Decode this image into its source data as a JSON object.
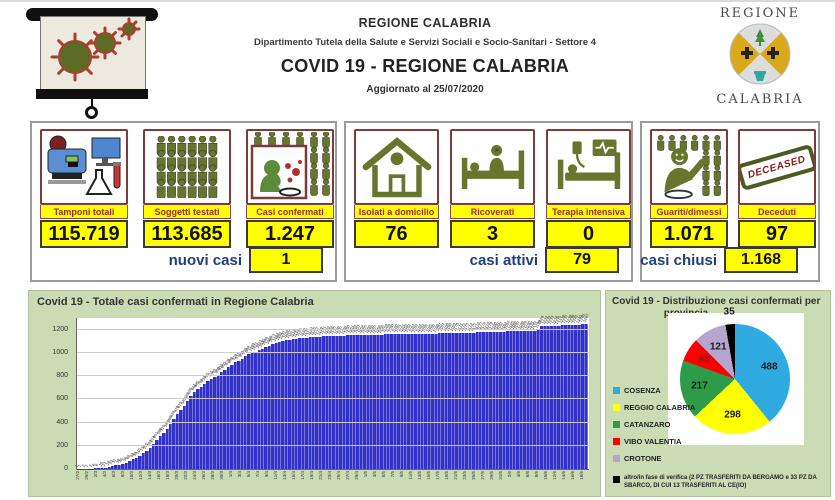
{
  "header": {
    "org": "REGIONE CALABRIA",
    "dept": "Dipartimento Tutela della Salute e Servizi Sociali e Socio-Sanitari - Settore 4",
    "title": "COVID 19 - REGIONE CALABRIA",
    "updated": "Aggiornato al  25/07/2020"
  },
  "logo": {
    "top": "REGIONE",
    "bottom": "CALABRIA"
  },
  "colors": {
    "accent_yellow": "#FFFF00",
    "label_red": "#A02B2B",
    "summary_navy": "#1F3E7A",
    "icon_olive": "#68752C",
    "icon_maroon": "#7E3B3B",
    "panel_green": "#CBDBB3",
    "bar_blue": "#3231C8"
  },
  "stats": {
    "groups": [
      {
        "cards": [
          {
            "label": "Tamponi totali",
            "value": "115.719"
          },
          {
            "label": "Soggetti testati",
            "value": "113.685"
          },
          {
            "label": "Casi confermati",
            "value": "1.247"
          }
        ],
        "summary_label": "nuovi casi",
        "summary_value": "1"
      },
      {
        "cards": [
          {
            "label": "Isolati a domicilio",
            "value": "76"
          },
          {
            "label": "Ricoverati",
            "value": "3"
          },
          {
            "label": "Terapia intensiva",
            "value": "0"
          }
        ],
        "summary_label": "casi attivi",
        "summary_value": "79"
      },
      {
        "cards": [
          {
            "label": "Guariti/dimessi",
            "value": "1.071"
          },
          {
            "label": "Deceduti",
            "value": "97",
            "stamp_text": "DECEASED"
          }
        ],
        "summary_label": "casi chiusi",
        "summary_value": "1.168"
      }
    ]
  },
  "chart_data": [
    {
      "type": "bar",
      "title": "Covid 19 - Totale casi confermati in Regione Calabria",
      "ylim": [
        0,
        1300
      ],
      "yticks": [
        0,
        200,
        400,
        600,
        800,
        1000,
        1200
      ],
      "grid": true,
      "bar_color": "#3231C8",
      "x": [
        "27/2",
        "28/2",
        "29/2",
        "1/3",
        "2/3",
        "3/3",
        "4/3",
        "5/3",
        "6/3",
        "7/3",
        "8/3",
        "9/3",
        "10/3",
        "11/3",
        "12/3",
        "13/3",
        "14/3",
        "15/3",
        "16/3",
        "17/3",
        "18/3",
        "19/3",
        "20/3",
        "21/3",
        "22/3",
        "23/3",
        "24/3",
        "25/3",
        "26/3",
        "27/3",
        "28/3",
        "29/3",
        "30/3",
        "31/3",
        "1/4",
        "2/4",
        "3/4",
        "4/4",
        "5/4",
        "6/4",
        "7/4",
        "8/4",
        "9/4",
        "10/4",
        "11/4",
        "12/4",
        "13/4",
        "14/4",
        "15/4",
        "16/4",
        "17/4",
        "18/4",
        "19/4",
        "20/4",
        "21/4",
        "22/4",
        "23/4",
        "24/4",
        "25/4",
        "26/4",
        "27/4",
        "28/4",
        "29/4",
        "30/4",
        "1/5",
        "2/5",
        "3/5",
        "4/5",
        "5/5",
        "6/5",
        "7/5",
        "8/5",
        "9/5",
        "10/5",
        "11/5",
        "12/5",
        "13/5",
        "14/5",
        "15/5",
        "16/5",
        "17/5",
        "18/5",
        "19/5",
        "20/5",
        "21/5",
        "22/5",
        "23/5",
        "24/5",
        "25/5",
        "26/5",
        "27/5",
        "28/5",
        "29/5",
        "30/5",
        "31/5",
        "1/6",
        "2/6",
        "3/6",
        "4/6",
        "5/6",
        "6/6",
        "7/6",
        "8/6",
        "9/6",
        "10/6",
        "11/6",
        "12/6",
        "13/6",
        "14/6",
        "15/6",
        "16/6",
        "17/6",
        "18/6",
        "19/6",
        "20/6",
        "21/6",
        "22/6",
        "23/6",
        "24/6",
        "25/6",
        "26/6",
        "27/6",
        "28/6",
        "29/6",
        "30/6",
        "1/7",
        "2/7",
        "3/7",
        "4/7",
        "5/7",
        "6/7",
        "7/7",
        "8/7",
        "9/7",
        "10/7",
        "11/7",
        "12/7",
        "13/7",
        "14/7",
        "15/7",
        "16/7",
        "17/7",
        "18/7",
        "19/7",
        "20/7",
        "21/7",
        "22/7",
        "23/7",
        "24/7",
        "25/7"
      ],
      "values": [
        1,
        1,
        2,
        2,
        3,
        6,
        8,
        10,
        13,
        18,
        23,
        31,
        38,
        45,
        56,
        68,
        84,
        98,
        115,
        134,
        155,
        182,
        214,
        251,
        280,
        310,
        345,
        388,
        428,
        470,
        510,
        545,
        585,
        628,
        661,
        685,
        708,
        733,
        755,
        772,
        790,
        809,
        832,
        855,
        878,
        898,
        918,
        932,
        950,
        970,
        988,
        1000,
        1011,
        1023,
        1035,
        1048,
        1060,
        1073,
        1084,
        1092,
        1100,
        1108,
        1112,
        1118,
        1122,
        1125,
        1128,
        1131,
        1133,
        1135,
        1137,
        1139,
        1141,
        1142,
        1144,
        1145,
        1146,
        1147,
        1148,
        1150,
        1151,
        1152,
        1153,
        1154,
        1155,
        1156,
        1156,
        1157,
        1158,
        1158,
        1159,
        1159,
        1160,
        1160,
        1161,
        1161,
        1162,
        1162,
        1163,
        1163,
        1164,
        1164,
        1165,
        1165,
        1166,
        1166,
        1167,
        1167,
        1168,
        1168,
        1169,
        1170,
        1171,
        1172,
        1173,
        1174,
        1175,
        1176,
        1177,
        1178,
        1178,
        1179,
        1180,
        1181,
        1182,
        1183,
        1184,
        1185,
        1186,
        1187,
        1188,
        1189,
        1190,
        1191,
        1192,
        1199,
        1229,
        1231,
        1232,
        1233,
        1234,
        1235,
        1236,
        1237,
        1238,
        1239,
        1241,
        1243,
        1245,
        1247
      ]
    },
    {
      "type": "pie",
      "title": "Covid 19 - Distribuzione casi confermati per",
      "title_line2": "provincia",
      "labels": [
        "COSENZA",
        "REGGIO CALABRIA",
        "CATANZARO",
        "VIBO VALENTIA",
        "CROTONE",
        "altro/in fase di verifica (2 PZ TRASFERITI DA BERGAMO e 33 PZ DA SBARCO, DI CUI 13 TRASFERITI AL CE(IO)"
      ],
      "values": [
        488,
        298,
        217,
        88,
        121,
        35
      ],
      "colors": [
        "#2FABE1",
        "#FFFF00",
        "#2E9B48",
        "#FF0000",
        "#B6A6CF",
        "#000000"
      ],
      "label_colors": [
        "#1a1a1a",
        "#1a1a1a",
        "#1a1a1a",
        "#8B1A1A",
        "#1a1a1a",
        "#1a1a1a"
      ],
      "legend_position": "bottom-left",
      "start_angle_deg": 0,
      "clockwise": true
    }
  ]
}
